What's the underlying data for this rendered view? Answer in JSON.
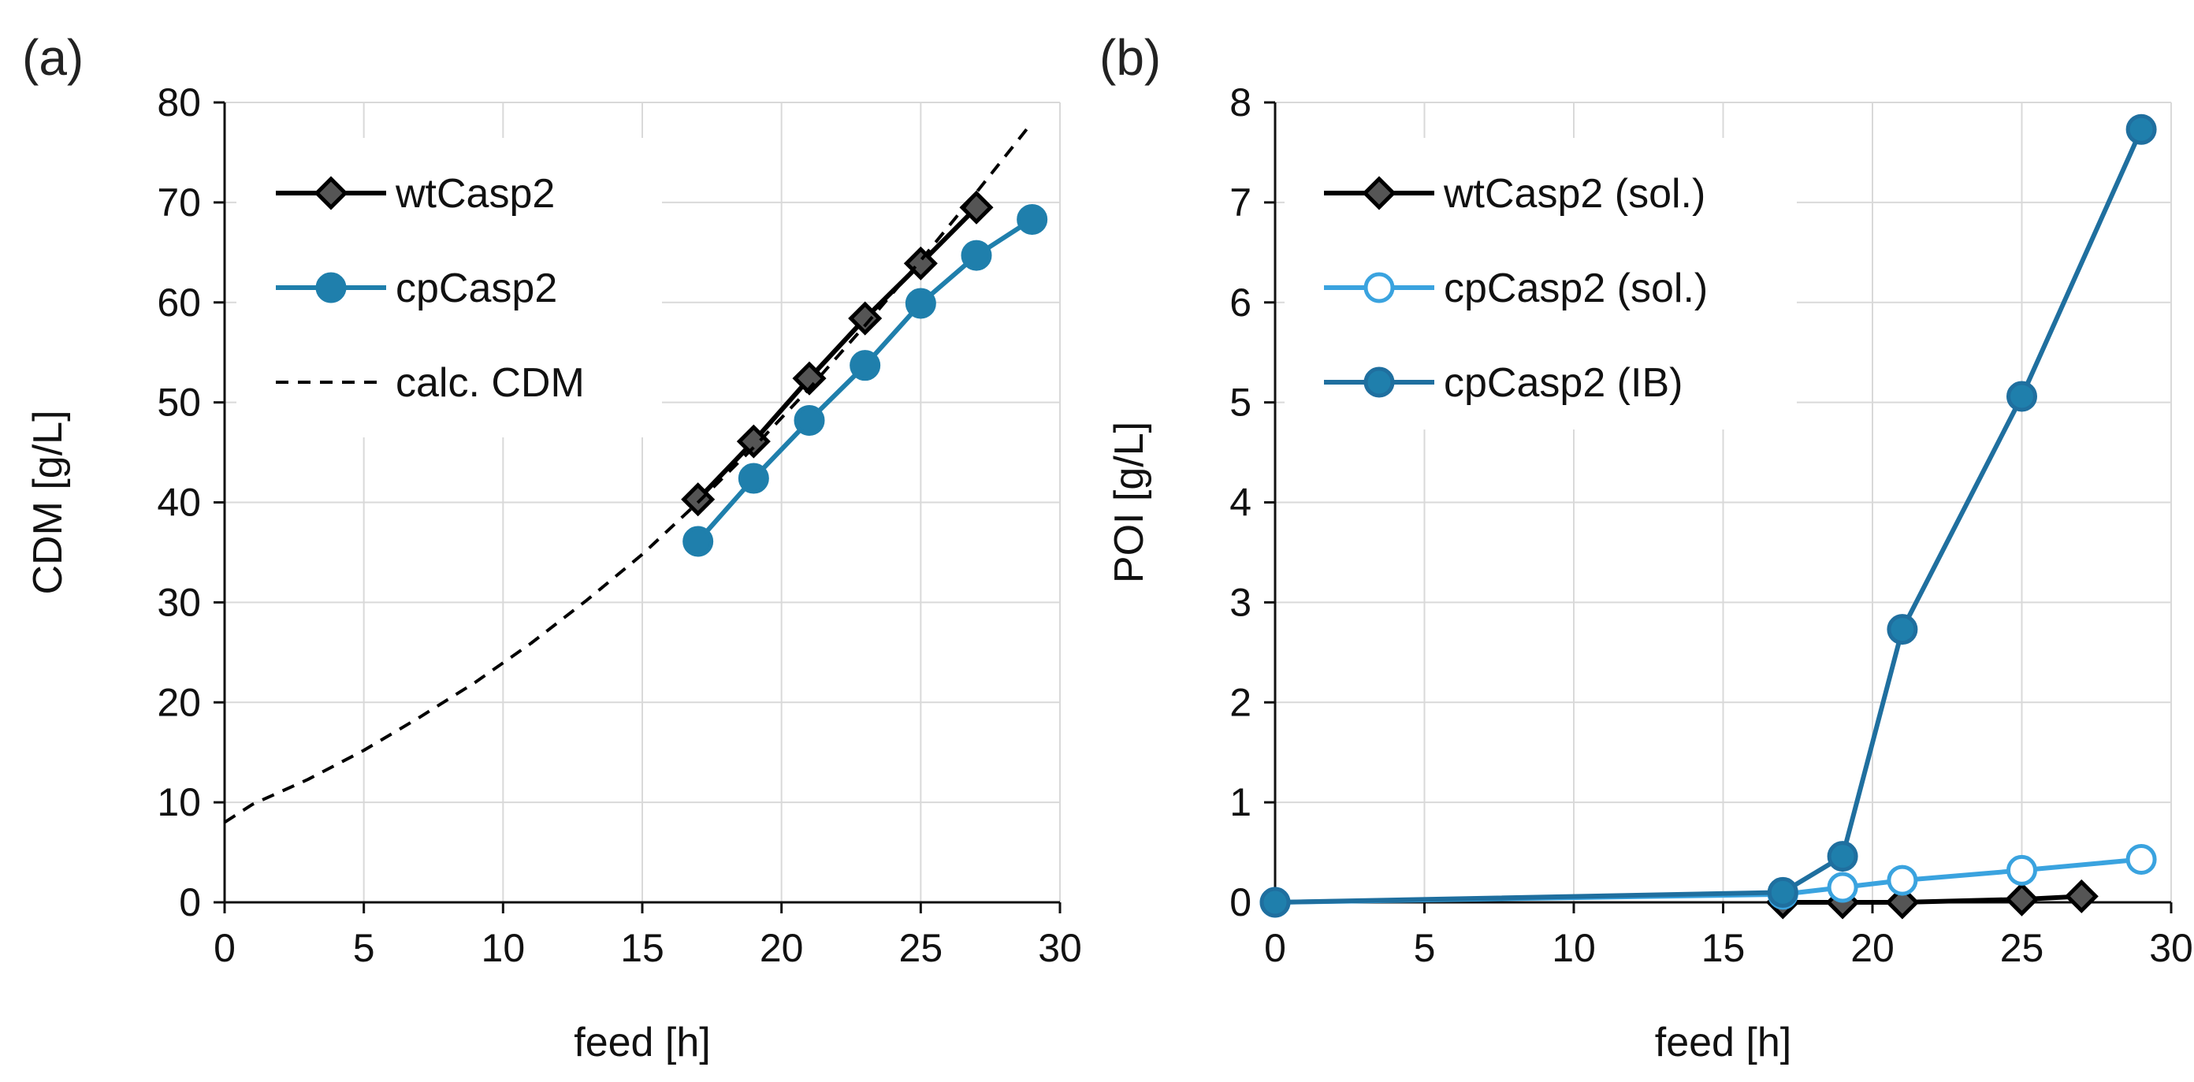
{
  "chart_data": [
    {
      "type": "line",
      "panel_label": "(a)",
      "xlabel": "feed [h]",
      "ylabel": "CDM [g/L]",
      "xlim": [
        0,
        30
      ],
      "ylim": [
        0,
        80
      ],
      "xticks": [
        0,
        5,
        10,
        15,
        20,
        25,
        30
      ],
      "yticks": [
        0,
        10,
        20,
        30,
        40,
        50,
        60,
        70,
        80
      ],
      "grid": true,
      "legend_position": "top-left",
      "series": [
        {
          "name": "wtCasp2",
          "color": "#000000",
          "marker": "diamond",
          "marker_fill": "#555555",
          "dashed": false,
          "x": [
            17,
            19,
            21,
            23,
            25,
            27
          ],
          "y": [
            40.3,
            46.1,
            52.4,
            58.4,
            63.9,
            69.5
          ]
        },
        {
          "name": "cpCasp2",
          "color": "#1f7fac",
          "marker": "circle",
          "marker_fill": "#1f7fac",
          "dashed": false,
          "x": [
            17,
            19,
            21,
            23,
            25,
            27,
            29
          ],
          "y": [
            36.1,
            42.4,
            48.2,
            53.7,
            59.9,
            64.7,
            68.3
          ]
        },
        {
          "name": "calc. CDM",
          "color": "#000000",
          "marker": "none",
          "dashed": true,
          "x": [
            0,
            1,
            3,
            5,
            7,
            9,
            11,
            13,
            15,
            17,
            19,
            21,
            23,
            25,
            27,
            29
          ],
          "y": [
            8,
            9.8,
            12.3,
            15.2,
            18.5,
            22.0,
            25.9,
            30.2,
            34.8,
            40.0,
            45.5,
            51.4,
            57.7,
            64.2,
            71.0,
            78.0
          ]
        }
      ]
    },
    {
      "type": "line",
      "panel_label": "(b)",
      "xlabel": "feed [h]",
      "ylabel": "POI [g/L]",
      "xlim": [
        0,
        30
      ],
      "ylim": [
        0,
        8
      ],
      "xticks": [
        0,
        5,
        10,
        15,
        20,
        25,
        30
      ],
      "yticks": [
        0,
        1,
        2,
        3,
        4,
        5,
        6,
        7,
        8
      ],
      "grid": true,
      "legend_position": "top-left",
      "series": [
        {
          "name": "wtCasp2 (sol.)",
          "color": "#000000",
          "marker": "diamond",
          "marker_fill": "#555555",
          "dashed": false,
          "x": [
            17,
            19,
            21,
            25,
            27
          ],
          "y": [
            0,
            0,
            0,
            0.03,
            0.06
          ]
        },
        {
          "name": "cpCasp2 (sol.)",
          "color": "#3aa3df",
          "marker": "circle",
          "marker_fill": "#ffffff",
          "dashed": false,
          "x": [
            0,
            17,
            19,
            21,
            25,
            29
          ],
          "y": [
            0,
            0.08,
            0.15,
            0.22,
            0.32,
            0.43
          ]
        },
        {
          "name": "cpCasp2 (IB)",
          "color": "#1f6f9f",
          "marker": "circle",
          "marker_fill": "#1f7fac",
          "dashed": false,
          "x": [
            0,
            17,
            19,
            21,
            25,
            29
          ],
          "y": [
            0,
            0.1,
            0.46,
            2.73,
            5.06,
            7.73
          ]
        }
      ]
    }
  ]
}
